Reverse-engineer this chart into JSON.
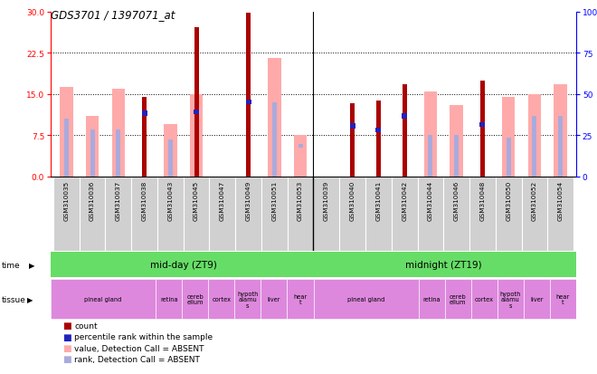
{
  "title": "GDS3701 / 1397071_at",
  "samples": [
    "GSM310035",
    "GSM310036",
    "GSM310037",
    "GSM310038",
    "GSM310043",
    "GSM310045",
    "GSM310047",
    "GSM310049",
    "GSM310051",
    "GSM310053",
    "GSM310039",
    "GSM310040",
    "GSM310041",
    "GSM310042",
    "GSM310044",
    "GSM310046",
    "GSM310048",
    "GSM310050",
    "GSM310052",
    "GSM310054"
  ],
  "count_values": [
    null,
    null,
    null,
    14.5,
    null,
    27.2,
    null,
    29.8,
    null,
    null,
    null,
    13.3,
    13.8,
    16.8,
    null,
    null,
    17.5,
    null,
    null,
    null
  ],
  "absent_pink_values": [
    16.2,
    11.0,
    16.0,
    null,
    9.5,
    15.0,
    null,
    null,
    21.5,
    7.5,
    null,
    null,
    null,
    null,
    15.5,
    13.0,
    null,
    14.5,
    15.0,
    16.8
  ],
  "rank_present_values": [
    null,
    null,
    null,
    11.5,
    null,
    11.8,
    null,
    13.5,
    null,
    null,
    null,
    9.2,
    8.5,
    11.0,
    null,
    null,
    9.5,
    null,
    null,
    null
  ],
  "absent_rank_values": [
    10.5,
    8.5,
    8.5,
    null,
    6.8,
    9.5,
    null,
    null,
    13.5,
    null,
    null,
    null,
    null,
    null,
    7.5,
    7.5,
    null,
    7.0,
    11.0,
    11.0
  ],
  "absent_blue_rank_vals": [
    null,
    null,
    null,
    null,
    null,
    null,
    null,
    null,
    null,
    5.5,
    null,
    null,
    null,
    null,
    null,
    null,
    null,
    null,
    null,
    null
  ],
  "ylim_left": [
    0,
    30
  ],
  "ylim_right": [
    0,
    100
  ],
  "yticks_left": [
    0,
    7.5,
    15,
    22.5,
    30
  ],
  "yticks_right": [
    0,
    25,
    50,
    75,
    100
  ],
  "color_count": "#aa0000",
  "color_pink": "#ffaaaa",
  "color_blue_present": "#2222bb",
  "color_blue_absent": "#aaaadd",
  "tissue_color": "#dd88dd",
  "midday_color": "#66dd66",
  "midnight_color": "#66dd66",
  "midday_label": "mid-day (ZT9)",
  "midnight_label": "midnight (ZT19)",
  "tissue_groups": [
    [
      0,
      4,
      "pineal gland"
    ],
    [
      4,
      5,
      "retina"
    ],
    [
      5,
      6,
      "cereb\nellum"
    ],
    [
      6,
      7,
      "cortex"
    ],
    [
      7,
      8,
      "hypoth\nalamu\ns"
    ],
    [
      8,
      9,
      "liver"
    ],
    [
      9,
      10,
      "hear\nt"
    ],
    [
      10,
      14,
      "pineal gland"
    ],
    [
      14,
      15,
      "retina"
    ],
    [
      15,
      16,
      "cereb\nellum"
    ],
    [
      16,
      17,
      "cortex"
    ],
    [
      17,
      18,
      "hypoth\nalamu\ns"
    ],
    [
      18,
      19,
      "liver"
    ],
    [
      19,
      20,
      "hear\nt"
    ]
  ],
  "legend_items": [
    [
      "#aa0000",
      "count"
    ],
    [
      "#2222bb",
      "percentile rank within the sample"
    ],
    [
      "#ffaaaa",
      "value, Detection Call = ABSENT"
    ],
    [
      "#aaaadd",
      "rank, Detection Call = ABSENT"
    ]
  ]
}
